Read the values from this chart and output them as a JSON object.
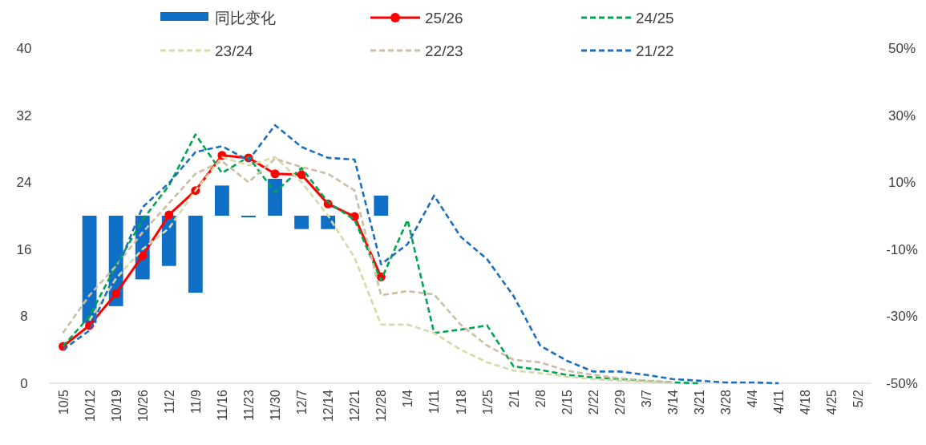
{
  "chart_data": {
    "type": "line",
    "categories": [
      "10/5",
      "10/12",
      "10/19",
      "10/26",
      "11/2",
      "11/9",
      "11/16",
      "11/23",
      "11/30",
      "12/7",
      "12/14",
      "12/21",
      "12/28",
      "1/4",
      "1/11",
      "1/18",
      "1/25",
      "2/1",
      "2/8",
      "2/15",
      "2/22",
      "2/29",
      "3/7",
      "3/14",
      "3/21",
      "3/28",
      "4/4",
      "4/11",
      "4/18",
      "4/25",
      "5/2"
    ],
    "series": [
      {
        "name": "同比变化",
        "type": "bar",
        "axis": "y2",
        "color": "#0f6fc6",
        "values": [
          null,
          -32,
          -27,
          -19,
          -15,
          -23,
          9,
          -0.5,
          11,
          -4,
          -4,
          null,
          6,
          null,
          null,
          null,
          null,
          null,
          null,
          null,
          null,
          null,
          null,
          null,
          null,
          null,
          null,
          null,
          null,
          null,
          null
        ]
      },
      {
        "name": "25/26",
        "color": "#ff0000",
        "marker": "circle",
        "line_style": "solid",
        "values": [
          4.4,
          6.9,
          10.7,
          15.2,
          20.1,
          23.0,
          27.2,
          26.9,
          25.0,
          24.9,
          21.4,
          19.9,
          12.7,
          null,
          null,
          null,
          null,
          null,
          null,
          null,
          null,
          null,
          null,
          null,
          null,
          null,
          null,
          null,
          null,
          null,
          null
        ]
      },
      {
        "name": "24/25",
        "color": "#00a651",
        "marker": "none",
        "line_style": "dashed",
        "values": [
          4.4,
          8.0,
          14.0,
          19.5,
          23.6,
          29.7,
          25.1,
          27.0,
          22.8,
          25.7,
          21.6,
          19.5,
          12.3,
          19.5,
          6.0,
          6.4,
          6.9,
          2.0,
          1.6,
          1.0,
          0.7,
          0.5,
          0.3,
          0.1,
          0.0,
          null,
          null,
          null,
          null,
          null,
          null
        ]
      },
      {
        "name": "23/24",
        "color": "#d3dba8",
        "marker": "none",
        "line_style": "dashed",
        "values": [
          null,
          7.5,
          12.5,
          16.0,
          18.5,
          23.0,
          27.0,
          26.0,
          27.0,
          24.0,
          20.0,
          15.0,
          7.0,
          7.0,
          6.0,
          4.0,
          2.5,
          1.5,
          1.2,
          0.8,
          0.5,
          0.3,
          0.2,
          0.1,
          null,
          null,
          null,
          null,
          null,
          null,
          null
        ]
      },
      {
        "name": "22/23",
        "color": "#cbbfa3",
        "marker": "none",
        "line_style": "dashed",
        "values": [
          6.0,
          10.5,
          14.0,
          18.0,
          21.5,
          25.0,
          26.5,
          24.0,
          26.8,
          25.8,
          25.0,
          23.0,
          10.5,
          11.0,
          10.6,
          7.0,
          4.5,
          2.8,
          2.5,
          1.5,
          1.0,
          0.6,
          0.3,
          0.1,
          null,
          null,
          null,
          null,
          null,
          null,
          null
        ]
      },
      {
        "name": "21/22",
        "color": "#1f6fbf",
        "marker": "none",
        "line_style": "dashed",
        "values": [
          4.0,
          6.3,
          13.3,
          21.0,
          23.9,
          27.6,
          28.3,
          26.6,
          30.8,
          28.2,
          26.9,
          26.7,
          14.2,
          16.6,
          22.4,
          17.5,
          14.8,
          10.4,
          4.5,
          2.7,
          1.4,
          1.4,
          1.0,
          0.5,
          0.3,
          0.1,
          0.1,
          0.0,
          null,
          null,
          null
        ]
      }
    ],
    "ylim": [
      0,
      40
    ],
    "yticks": [
      0,
      8,
      16,
      24,
      32,
      40
    ],
    "y2lim": [
      -50,
      50
    ],
    "y2ticks": [
      {
        "value": -50,
        "label": "-50%"
      },
      {
        "value": -30,
        "label": "-30%"
      },
      {
        "value": -10,
        "label": "-10%"
      },
      {
        "value": 10,
        "label": "10%"
      },
      {
        "value": 30,
        "label": "30%"
      },
      {
        "value": 50,
        "label": "50%"
      }
    ],
    "grid": false,
    "legend": "top"
  }
}
